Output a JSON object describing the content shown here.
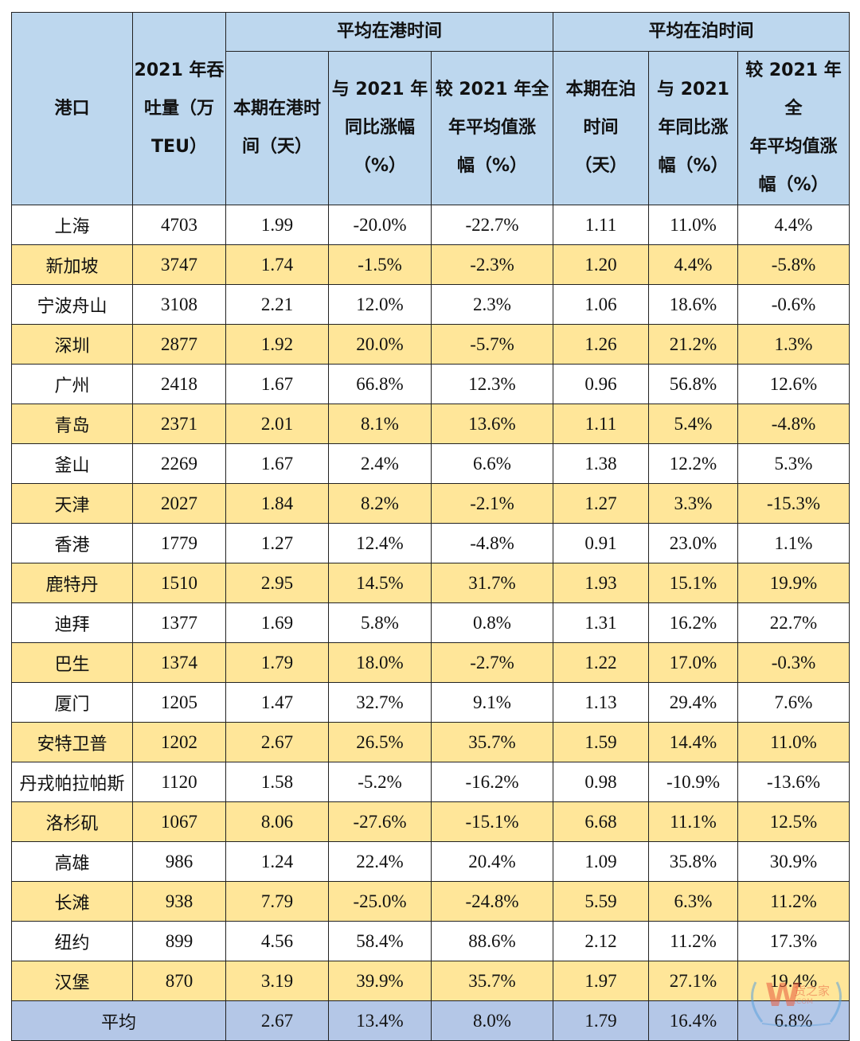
{
  "table": {
    "headers": {
      "port": "港口",
      "throughput": [
        "2021 年吞",
        "吐量（万",
        "TEU）"
      ],
      "group_port_time": "平均在港时间",
      "group_berth_time": "平均在泊时间",
      "port_current": [
        "本期在港时",
        "间（天）"
      ],
      "port_yoy": [
        "与 2021 年",
        "同比涨幅",
        "（%）"
      ],
      "port_vs_avg": [
        "较 2021 年全",
        "年平均值涨",
        "幅（%）"
      ],
      "berth_current": [
        "本期在泊",
        "时间",
        "（天）"
      ],
      "berth_yoy": [
        "与 2021",
        "年同比涨",
        "幅（%）"
      ],
      "berth_vs_avg": [
        "较 2021 年全",
        "年平均值涨",
        "幅（%）"
      ]
    },
    "rows": [
      {
        "port": "上海",
        "throughput": "4703",
        "port_days": "1.99",
        "port_yoy": "-20.0%",
        "port_vs_avg": "-22.7%",
        "berth_days": "1.11",
        "berth_yoy": "11.0%",
        "berth_vs_avg": "4.4%"
      },
      {
        "port": "新加坡",
        "throughput": "3747",
        "port_days": "1.74",
        "port_yoy": "-1.5%",
        "port_vs_avg": "-2.3%",
        "berth_days": "1.20",
        "berth_yoy": "4.4%",
        "berth_vs_avg": "-5.8%"
      },
      {
        "port": "宁波舟山",
        "throughput": "3108",
        "port_days": "2.21",
        "port_yoy": "12.0%",
        "port_vs_avg": "2.3%",
        "berth_days": "1.06",
        "berth_yoy": "18.6%",
        "berth_vs_avg": "-0.6%"
      },
      {
        "port": "深圳",
        "throughput": "2877",
        "port_days": "1.92",
        "port_yoy": "20.0%",
        "port_vs_avg": "-5.7%",
        "berth_days": "1.26",
        "berth_yoy": "21.2%",
        "berth_vs_avg": "1.3%"
      },
      {
        "port": "广州",
        "throughput": "2418",
        "port_days": "1.67",
        "port_yoy": "66.8%",
        "port_vs_avg": "12.3%",
        "berth_days": "0.96",
        "berth_yoy": "56.8%",
        "berth_vs_avg": "12.6%"
      },
      {
        "port": "青岛",
        "throughput": "2371",
        "port_days": "2.01",
        "port_yoy": "8.1%",
        "port_vs_avg": "13.6%",
        "berth_days": "1.11",
        "berth_yoy": "5.4%",
        "berth_vs_avg": "-4.8%"
      },
      {
        "port": "釜山",
        "throughput": "2269",
        "port_days": "1.67",
        "port_yoy": "2.4%",
        "port_vs_avg": "6.6%",
        "berth_days": "1.38",
        "berth_yoy": "12.2%",
        "berth_vs_avg": "5.3%"
      },
      {
        "port": "天津",
        "throughput": "2027",
        "port_days": "1.84",
        "port_yoy": "8.2%",
        "port_vs_avg": "-2.1%",
        "berth_days": "1.27",
        "berth_yoy": "3.3%",
        "berth_vs_avg": "-15.3%"
      },
      {
        "port": "香港",
        "throughput": "1779",
        "port_days": "1.27",
        "port_yoy": "12.4%",
        "port_vs_avg": "-4.8%",
        "berth_days": "0.91",
        "berth_yoy": "23.0%",
        "berth_vs_avg": "1.1%"
      },
      {
        "port": "鹿特丹",
        "throughput": "1510",
        "port_days": "2.95",
        "port_yoy": "14.5%",
        "port_vs_avg": "31.7%",
        "berth_days": "1.93",
        "berth_yoy": "15.1%",
        "berth_vs_avg": "19.9%"
      },
      {
        "port": "迪拜",
        "throughput": "1377",
        "port_days": "1.69",
        "port_yoy": "5.8%",
        "port_vs_avg": "0.8%",
        "berth_days": "1.31",
        "berth_yoy": "16.2%",
        "berth_vs_avg": "22.7%"
      },
      {
        "port": "巴生",
        "throughput": "1374",
        "port_days": "1.79",
        "port_yoy": "18.0%",
        "port_vs_avg": "-2.7%",
        "berth_days": "1.22",
        "berth_yoy": "17.0%",
        "berth_vs_avg": "-0.3%"
      },
      {
        "port": "厦门",
        "throughput": "1205",
        "port_days": "1.47",
        "port_yoy": "32.7%",
        "port_vs_avg": "9.1%",
        "berth_days": "1.13",
        "berth_yoy": "29.4%",
        "berth_vs_avg": "7.6%"
      },
      {
        "port": "安特卫普",
        "throughput": "1202",
        "port_days": "2.67",
        "port_yoy": "26.5%",
        "port_vs_avg": "35.7%",
        "berth_days": "1.59",
        "berth_yoy": "14.4%",
        "berth_vs_avg": "11.0%"
      },
      {
        "port": "丹戎帕拉帕斯",
        "throughput": "1120",
        "port_days": "1.58",
        "port_yoy": "-5.2%",
        "port_vs_avg": "-16.2%",
        "berth_days": "0.98",
        "berth_yoy": "-10.9%",
        "berth_vs_avg": "-13.6%"
      },
      {
        "port": "洛杉矶",
        "throughput": "1067",
        "port_days": "8.06",
        "port_yoy": "-27.6%",
        "port_vs_avg": "-15.1%",
        "berth_days": "6.68",
        "berth_yoy": "11.1%",
        "berth_vs_avg": "12.5%"
      },
      {
        "port": "高雄",
        "throughput": "986",
        "port_days": "1.24",
        "port_yoy": "22.4%",
        "port_vs_avg": "20.4%",
        "berth_days": "1.09",
        "berth_yoy": "35.8%",
        "berth_vs_avg": "30.9%"
      },
      {
        "port": "长滩",
        "throughput": "938",
        "port_days": "7.79",
        "port_yoy": "-25.0%",
        "port_vs_avg": "-24.8%",
        "berth_days": "5.59",
        "berth_yoy": "6.3%",
        "berth_vs_avg": "11.2%"
      },
      {
        "port": "纽约",
        "throughput": "899",
        "port_days": "4.56",
        "port_yoy": "58.4%",
        "port_vs_avg": "88.6%",
        "berth_days": "2.12",
        "berth_yoy": "11.2%",
        "berth_vs_avg": "17.3%"
      },
      {
        "port": "汉堡",
        "throughput": "870",
        "port_days": "3.19",
        "port_yoy": "39.9%",
        "port_vs_avg": "35.7%",
        "berth_days": "1.97",
        "berth_yoy": "27.1%",
        "berth_vs_avg": "19.4%"
      }
    ],
    "average": {
      "label": "平均",
      "port_days": "2.67",
      "port_yoy": "13.4%",
      "port_vs_avg": "8.0%",
      "berth_days": "1.79",
      "berth_yoy": "16.4%",
      "berth_vs_avg": "6.8%"
    }
  },
  "colors": {
    "header_bg": "#bdd7ee",
    "row_alt_bg": "#ffe699",
    "row_bg": "#ffffff",
    "average_bg": "#b4c7e7",
    "border": "#222222"
  },
  "watermark": {
    "logo": "W",
    "text": "货之家",
    "url": ".COM"
  }
}
